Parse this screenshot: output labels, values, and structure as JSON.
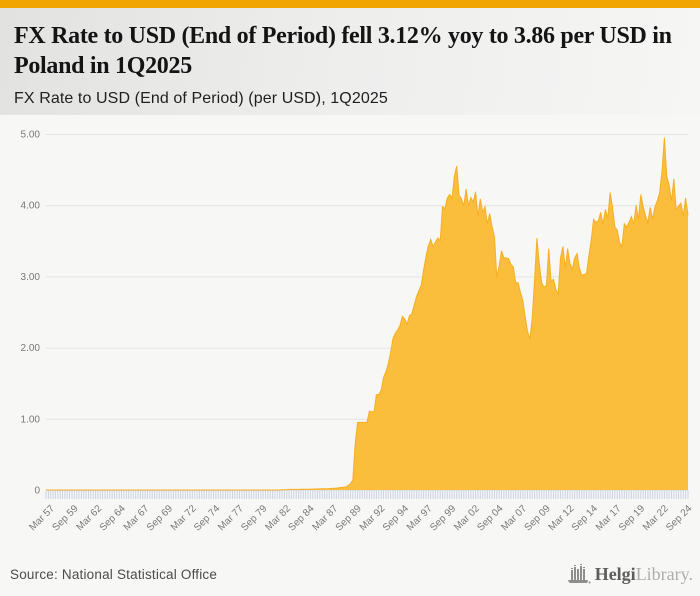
{
  "accent_color": "#F0A502",
  "header": {
    "title": "FX Rate to USD (End of Period) fell 3.12% yoy to 3.86 per USD in Poland in 1Q2025",
    "subtitle": "FX Rate to USD (End of Period) (per USD), 1Q2025"
  },
  "footer": {
    "source": "Source: National Statistical Office",
    "logo_bold": "Helgi",
    "logo_light": "Library."
  },
  "chart_data": {
    "type": "area",
    "title": "FX Rate to USD (End of Period) (per USD), 1Q2025",
    "country": "Poland",
    "unit": "per USD",
    "latest_period": "1Q2025",
    "latest_value": 3.86,
    "yoy_change_pct": -3.12,
    "fill_color": "#FABD3C",
    "line_color": "#F5AF25",
    "grid_color": "#e3e3e3",
    "tick_color": "#c9d2e3",
    "label_color": "#787878",
    "grid_on": true,
    "legend": "none",
    "ylim": [
      0,
      5
    ],
    "yticks": [
      0,
      1,
      2,
      3,
      4,
      5
    ],
    "ytick_labels": [
      "0",
      "1.00",
      "2.00",
      "3.00",
      "4.00",
      "5.00"
    ],
    "x_axis_note": "quarterly, Mar 1957 - Mar 2025",
    "quarters_total": 273,
    "x_label_step": 10,
    "x_tick_labels": [
      "Mar 57",
      "Sep 59",
      "Mar 62",
      "Sep 64",
      "Mar 67",
      "Sep 69",
      "Mar 72",
      "Sep 74",
      "Mar 77",
      "Sep 79",
      "Mar 82",
      "Sep 84",
      "Mar 87",
      "Sep 89",
      "Mar 92",
      "Sep 94",
      "Mar 97",
      "Sep 99",
      "Mar 02",
      "Sep 04",
      "Mar 07",
      "Sep 09",
      "Mar 12",
      "Sep 14",
      "Mar 17",
      "Sep 19",
      "Mar 22",
      "Sep 24"
    ],
    "pre1989_anchor_points": [
      [
        0,
        0.0004
      ],
      [
        99,
        0.0004
      ],
      [
        103,
        0.008
      ],
      [
        107,
        0.009
      ],
      [
        111,
        0.011
      ],
      [
        115,
        0.015
      ],
      [
        119,
        0.018
      ],
      [
        123,
        0.027
      ],
      [
        127,
        0.043
      ],
      [
        128,
        0.06
      ]
    ],
    "quarterly_values_from_mar_1989": [
      0.06,
      0.09,
      0.14,
      0.65,
      0.95,
      0.95,
      0.95,
      0.95,
      0.95,
      1.11,
      1.1,
      1.1,
      1.34,
      1.34,
      1.4,
      1.58,
      1.66,
      1.77,
      1.93,
      2.13,
      2.2,
      2.25,
      2.31,
      2.44,
      2.4,
      2.33,
      2.45,
      2.47,
      2.6,
      2.72,
      2.8,
      2.88,
      3.09,
      3.28,
      3.43,
      3.52,
      3.42,
      3.48,
      3.54,
      3.5,
      3.98,
      3.95,
      4.1,
      4.15,
      4.1,
      4.4,
      4.55,
      4.14,
      4.09,
      3.99,
      4.23,
      3.99,
      4.11,
      4.04,
      4.19,
      3.84,
      4.09,
      3.9,
      3.98,
      3.74,
      3.88,
      3.7,
      3.55,
      2.99,
      3.15,
      3.36,
      3.26,
      3.26,
      3.25,
      3.17,
      3.13,
      2.91,
      2.91,
      2.78,
      2.66,
      2.44,
      2.23,
      2.12,
      2.41,
      2.96,
      3.54,
      3.17,
      2.91,
      2.85,
      2.87,
      3.39,
      2.93,
      2.96,
      2.82,
      2.75,
      3.26,
      3.42,
      3.11,
      3.39,
      3.18,
      3.1,
      3.26,
      3.32,
      3.12,
      3.01,
      3.03,
      3.04,
      3.29,
      3.51,
      3.8,
      3.76,
      3.78,
      3.9,
      3.73,
      3.94,
      3.82,
      4.18,
      3.97,
      3.7,
      3.65,
      3.48,
      3.42,
      3.74,
      3.69,
      3.76,
      3.84,
      3.73,
      4.0,
      3.8,
      4.15,
      3.98,
      3.85,
      3.76,
      3.97,
      3.8,
      3.98,
      4.06,
      4.18,
      4.48,
      4.95,
      4.4,
      4.29,
      4.06,
      4.37,
      3.94,
      3.99,
      4.03,
      3.85,
      4.1,
      3.86
    ]
  }
}
